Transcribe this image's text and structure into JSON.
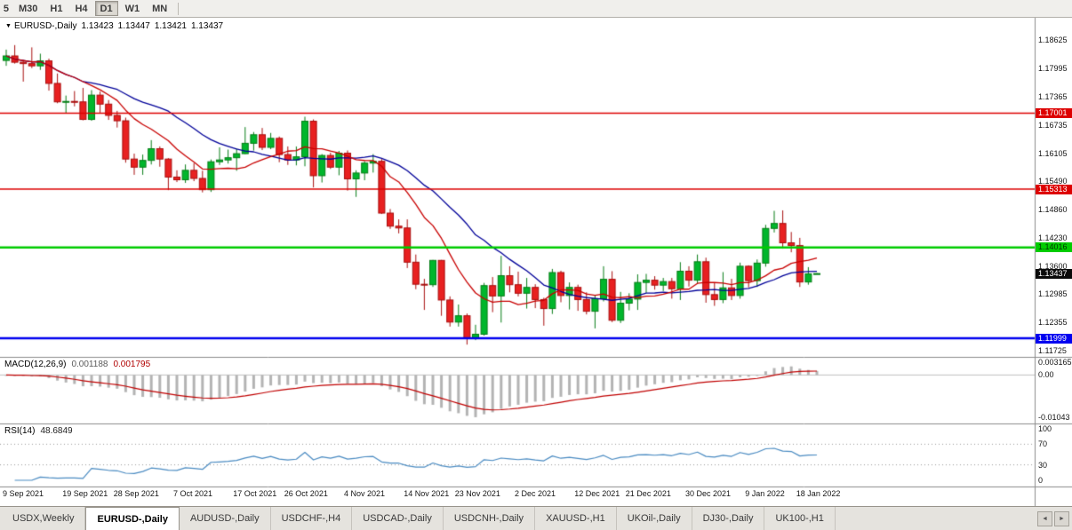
{
  "icons": {
    "symbol_marker": "▼"
  },
  "toolbar": {
    "timeframes": [
      {
        "label": "5",
        "active": false,
        "partial": true
      },
      {
        "label": "M30",
        "active": false,
        "partial": false
      },
      {
        "label": "H1",
        "active": false,
        "partial": false
      },
      {
        "label": "H4",
        "active": false,
        "partial": false
      },
      {
        "label": "D1",
        "active": true,
        "partial": false
      },
      {
        "label": "W1",
        "active": false,
        "partial": false
      },
      {
        "label": "MN",
        "active": false,
        "partial": false
      }
    ]
  },
  "quote_header": {
    "symbol": "EURUSD-,Daily",
    "open": "1.13423",
    "high": "1.13447",
    "low": "1.13421",
    "close": "1.13437"
  },
  "chart_data": {
    "type": "candlestick",
    "symbol": "EURUSD",
    "timeframe": "Daily",
    "price_range": [
      1.11725,
      1.18625
    ],
    "price_axis_ticks": [
      "1.18625",
      "1.17995",
      "1.17365",
      "1.16735",
      "1.16105",
      "1.15490",
      "1.14860",
      "1.14230",
      "1.13600",
      "1.12985",
      "1.12355",
      "1.11725"
    ],
    "colors": {
      "up_fill": "#00b62c",
      "up_stroke": "#067d16",
      "down_fill": "#e82020",
      "down_stroke": "#a80e0e",
      "ma_fast": "#c80000",
      "ma_slow": "#000099",
      "macd_hist": "#b4b4b4",
      "macd_signal": "#c00000",
      "rsi_line": "#4a8bc2"
    },
    "ma": [
      {
        "period": 10,
        "color": "#c80000"
      },
      {
        "period": 20,
        "color": "#000099"
      }
    ],
    "levels": [
      {
        "price": 1.17001,
        "label": "1.17001",
        "color": "#dd0000",
        "text_color": "#ffffff",
        "line_width": 1.5
      },
      {
        "price": 1.15313,
        "label": "1.15313",
        "color": "#dd0000",
        "text_color": "#ffffff",
        "line_width": 1.5
      },
      {
        "price": 1.14016,
        "label": "1.14016",
        "color": "#00cc00",
        "text_color": "#003300",
        "line_width": 2.5
      },
      {
        "price": 1.11999,
        "label": "1.11999",
        "color": "#0000f0",
        "text_color": "#ffffff",
        "line_width": 2.5
      }
    ],
    "current_price": {
      "price": 1.13437,
      "label": "1.13437",
      "bg": "#0a0a0a",
      "text_color": "#ffffff"
    },
    "macd": {
      "title": "MACD(12,26,9)",
      "main_value": "0.001188",
      "signal_value": "0.001795",
      "fast": 12,
      "slow": 26,
      "signal": 9,
      "axis_ticks": [
        {
          "v": 0.003165,
          "label": "0.003165"
        },
        {
          "v": 0,
          "label": "0.00"
        },
        {
          "v": -0.01043,
          "label": "-0.01043"
        }
      ]
    },
    "rsi": {
      "title": "RSI(14)",
      "value": "48.6849",
      "period": 14,
      "levels": [
        70,
        30
      ],
      "axis_ticks": [
        {
          "v": 100,
          "label": "100"
        },
        {
          "v": 70,
          "label": "70"
        },
        {
          "v": 30,
          "label": "30"
        },
        {
          "v": 0,
          "label": "0"
        }
      ]
    },
    "x_labels": [
      {
        "text": "9 Sep 2021",
        "i": 0
      },
      {
        "text": "19 Sep 2021",
        "i": 7
      },
      {
        "text": "28 Sep 2021",
        "i": 13
      },
      {
        "text": "7 Oct 2021",
        "i": 20
      },
      {
        "text": "17 Oct 2021",
        "i": 27
      },
      {
        "text": "26 Oct 2021",
        "i": 33
      },
      {
        "text": "4 Nov 2021",
        "i": 40
      },
      {
        "text": "14 Nov 2021",
        "i": 47
      },
      {
        "text": "23 Nov 2021",
        "i": 53
      },
      {
        "text": "2 Dec 2021",
        "i": 60
      },
      {
        "text": "12 Dec 2021",
        "i": 67
      },
      {
        "text": "21 Dec 2021",
        "i": 73
      },
      {
        "text": "30 Dec 2021",
        "i": 80
      },
      {
        "text": "9 Jan 2022",
        "i": 87
      },
      {
        "text": "18 Jan 2022",
        "i": 93
      }
    ],
    "candles": [
      [
        "2021-09-09",
        1.1817,
        1.1841,
        1.1805,
        1.1827
      ],
      [
        "2021-09-10",
        1.1827,
        1.1851,
        1.181,
        1.1813
      ],
      [
        "2021-09-13",
        1.1813,
        1.1818,
        1.177,
        1.181
      ],
      [
        "2021-09-14",
        1.181,
        1.1846,
        1.18,
        1.1805
      ],
      [
        "2021-09-15",
        1.1805,
        1.1832,
        1.1796,
        1.1816
      ],
      [
        "2021-09-16",
        1.1816,
        1.1821,
        1.175,
        1.1766
      ],
      [
        "2021-09-17",
        1.1766,
        1.1788,
        1.1722,
        1.1725
      ],
      [
        "2021-09-20",
        1.1725,
        1.1739,
        1.17,
        1.1726
      ],
      [
        "2021-09-21",
        1.1726,
        1.1749,
        1.1715,
        1.1725
      ],
      [
        "2021-09-22",
        1.1725,
        1.1756,
        1.1684,
        1.1686
      ],
      [
        "2021-09-23",
        1.1686,
        1.1751,
        1.1683,
        1.174
      ],
      [
        "2021-09-24",
        1.174,
        1.1748,
        1.1701,
        1.172
      ],
      [
        "2021-09-27",
        1.172,
        1.1729,
        1.1685,
        1.1695
      ],
      [
        "2021-09-28",
        1.1695,
        1.1705,
        1.1668,
        1.1683
      ],
      [
        "2021-09-29",
        1.1683,
        1.169,
        1.159,
        1.1598
      ],
      [
        "2021-09-30",
        1.1598,
        1.161,
        1.1563,
        1.158
      ],
      [
        "2021-10-01",
        1.158,
        1.1608,
        1.1563,
        1.1595
      ],
      [
        "2021-10-04",
        1.1595,
        1.164,
        1.1586,
        1.1621
      ],
      [
        "2021-10-05",
        1.1621,
        1.1626,
        1.1581,
        1.1598
      ],
      [
        "2021-10-06",
        1.1598,
        1.16,
        1.1529,
        1.1558
      ],
      [
        "2021-10-07",
        1.1558,
        1.1573,
        1.1547,
        1.1552
      ],
      [
        "2021-10-08",
        1.1552,
        1.1586,
        1.1545,
        1.1573
      ],
      [
        "2021-10-11",
        1.1573,
        1.1589,
        1.1549,
        1.1555
      ],
      [
        "2021-10-12",
        1.1555,
        1.1572,
        1.1524,
        1.153
      ],
      [
        "2021-10-13",
        1.153,
        1.1597,
        1.1525,
        1.1592
      ],
      [
        "2021-10-14",
        1.1592,
        1.1624,
        1.1585,
        1.1596
      ],
      [
        "2021-10-15",
        1.1596,
        1.1619,
        1.1588,
        1.1601
      ],
      [
        "2021-10-18",
        1.1601,
        1.1621,
        1.1572,
        1.161
      ],
      [
        "2021-10-19",
        1.161,
        1.1669,
        1.1609,
        1.1633
      ],
      [
        "2021-10-20",
        1.1633,
        1.1658,
        1.1617,
        1.1652
      ],
      [
        "2021-10-21",
        1.1652,
        1.1667,
        1.1618,
        1.1624
      ],
      [
        "2021-10-22",
        1.1624,
        1.1656,
        1.162,
        1.1644
      ],
      [
        "2021-10-25",
        1.1644,
        1.1648,
        1.1591,
        1.1608
      ],
      [
        "2021-10-26",
        1.1608,
        1.1626,
        1.1585,
        1.1596
      ],
      [
        "2021-10-27",
        1.1596,
        1.1626,
        1.1584,
        1.1603
      ],
      [
        "2021-10-28",
        1.1603,
        1.1692,
        1.1582,
        1.1682
      ],
      [
        "2021-10-29",
        1.1682,
        1.1686,
        1.1535,
        1.1561
      ],
      [
        "2021-11-01",
        1.1561,
        1.1609,
        1.1546,
        1.1606
      ],
      [
        "2021-11-02",
        1.1606,
        1.1612,
        1.1576,
        1.158
      ],
      [
        "2021-11-03",
        1.158,
        1.1616,
        1.1562,
        1.1611
      ],
      [
        "2021-11-04",
        1.1611,
        1.1617,
        1.1528,
        1.1554
      ],
      [
        "2021-11-05",
        1.1554,
        1.1573,
        1.1514,
        1.1567
      ],
      [
        "2021-11-08",
        1.1567,
        1.1593,
        1.1551,
        1.1589
      ],
      [
        "2021-11-09",
        1.1589,
        1.1609,
        1.1568,
        1.1593
      ],
      [
        "2021-11-10",
        1.1593,
        1.1598,
        1.1476,
        1.1478
      ],
      [
        "2021-11-11",
        1.1478,
        1.1487,
        1.1443,
        1.1449
      ],
      [
        "2021-11-12",
        1.1449,
        1.1464,
        1.1433,
        1.1445
      ],
      [
        "2021-11-15",
        1.1445,
        1.1464,
        1.1356,
        1.1369
      ],
      [
        "2021-11-16",
        1.1369,
        1.1386,
        1.1309,
        1.132
      ],
      [
        "2021-11-17",
        1.132,
        1.1332,
        1.1263,
        1.1319
      ],
      [
        "2021-11-18",
        1.1319,
        1.1374,
        1.1314,
        1.1373
      ],
      [
        "2021-11-19",
        1.1373,
        1.1374,
        1.125,
        1.1285
      ],
      [
        "2021-11-22",
        1.1285,
        1.1293,
        1.1226,
        1.1236
      ],
      [
        "2021-11-23",
        1.1236,
        1.1275,
        1.1226,
        1.125
      ],
      [
        "2021-11-24",
        1.125,
        1.1255,
        1.1186,
        1.12
      ],
      [
        "2021-11-25",
        1.12,
        1.123,
        1.1196,
        1.1209
      ],
      [
        "2021-11-26",
        1.1209,
        1.1323,
        1.1206,
        1.1317
      ],
      [
        "2021-11-29",
        1.1317,
        1.1336,
        1.1258,
        1.1294
      ],
      [
        "2021-11-30",
        1.1294,
        1.1383,
        1.1235,
        1.1339
      ],
      [
        "2021-12-01",
        1.1339,
        1.136,
        1.1302,
        1.1319
      ],
      [
        "2021-12-02",
        1.1319,
        1.1348,
        1.1293,
        1.13
      ],
      [
        "2021-12-03",
        1.13,
        1.1334,
        1.1266,
        1.1313
      ],
      [
        "2021-12-06",
        1.1313,
        1.132,
        1.1267,
        1.1286
      ],
      [
        "2021-12-07",
        1.1286,
        1.129,
        1.1228,
        1.1266
      ],
      [
        "2021-12-08",
        1.1266,
        1.1354,
        1.1254,
        1.1346
      ],
      [
        "2021-12-09",
        1.1346,
        1.135,
        1.128,
        1.1295
      ],
      [
        "2021-12-10",
        1.1295,
        1.1324,
        1.1264,
        1.1313
      ],
      [
        "2021-12-13",
        1.1313,
        1.1319,
        1.1261,
        1.1286
      ],
      [
        "2021-12-14",
        1.1286,
        1.1302,
        1.1253,
        1.126
      ],
      [
        "2021-12-15",
        1.126,
        1.1296,
        1.1222,
        1.1288
      ],
      [
        "2021-12-16",
        1.1288,
        1.136,
        1.1282,
        1.1331
      ],
      [
        "2021-12-17",
        1.1331,
        1.1349,
        1.1236,
        1.124
      ],
      [
        "2021-12-20",
        1.124,
        1.1303,
        1.1234,
        1.1278
      ],
      [
        "2021-12-21",
        1.1278,
        1.13,
        1.1262,
        1.1287
      ],
      [
        "2021-12-22",
        1.1287,
        1.1342,
        1.1263,
        1.1324
      ],
      [
        "2021-12-23",
        1.1324,
        1.1343,
        1.1301,
        1.1329
      ],
      [
        "2021-12-24",
        1.1329,
        1.1338,
        1.1308,
        1.1318
      ],
      [
        "2021-12-27",
        1.1318,
        1.1334,
        1.1305,
        1.1326
      ],
      [
        "2021-12-28",
        1.1326,
        1.1334,
        1.1288,
        1.131
      ],
      [
        "2021-12-29",
        1.131,
        1.1369,
        1.1285,
        1.1349
      ],
      [
        "2021-12-30",
        1.1349,
        1.136,
        1.1315,
        1.1329
      ],
      [
        "2021-12-31",
        1.1329,
        1.1386,
        1.1321,
        1.137
      ],
      [
        "2022-01-03",
        1.137,
        1.1379,
        1.1279,
        1.1297
      ],
      [
        "2022-01-04",
        1.1297,
        1.1323,
        1.1272,
        1.1286
      ],
      [
        "2022-01-05",
        1.1286,
        1.1347,
        1.1278,
        1.1312
      ],
      [
        "2022-01-06",
        1.1312,
        1.1332,
        1.1285,
        1.1295
      ],
      [
        "2022-01-07",
        1.1295,
        1.1368,
        1.1288,
        1.136
      ],
      [
        "2022-01-10",
        1.136,
        1.1362,
        1.1313,
        1.1328
      ],
      [
        "2022-01-11",
        1.1328,
        1.1375,
        1.1314,
        1.1367
      ],
      [
        "2022-01-12",
        1.1367,
        1.1452,
        1.1359,
        1.1444
      ],
      [
        "2022-01-13",
        1.1444,
        1.1483,
        1.1435,
        1.1455
      ],
      [
        "2022-01-14",
        1.1455,
        1.1484,
        1.1399,
        1.1412
      ],
      [
        "2022-01-17",
        1.1412,
        1.1436,
        1.1391,
        1.1406
      ],
      [
        "2022-01-18",
        1.1406,
        1.1423,
        1.1314,
        1.1325
      ],
      [
        "2022-01-19",
        1.1325,
        1.1358,
        1.1319,
        1.1343
      ],
      [
        "2022-01-20",
        1.13423,
        1.13447,
        1.13421,
        1.13437
      ]
    ]
  },
  "bottom_tabs": {
    "items": [
      {
        "label": "USDX,Weekly",
        "active": false
      },
      {
        "label": "EURUSD-,Daily",
        "active": true
      },
      {
        "label": "AUDUSD-,Daily",
        "active": false
      },
      {
        "label": "USDCHF-,H4",
        "active": false
      },
      {
        "label": "USDCAD-,Daily",
        "active": false
      },
      {
        "label": "USDCNH-,Daily",
        "active": false
      },
      {
        "label": "XAUUSD-,H1",
        "active": false
      },
      {
        "label": "UKOil-,Daily",
        "active": false
      },
      {
        "label": "DJ30-,Daily",
        "active": false
      },
      {
        "label": "UK100-,H1",
        "active": false
      }
    ],
    "scroll_left": "◄",
    "scroll_right": "►"
  }
}
